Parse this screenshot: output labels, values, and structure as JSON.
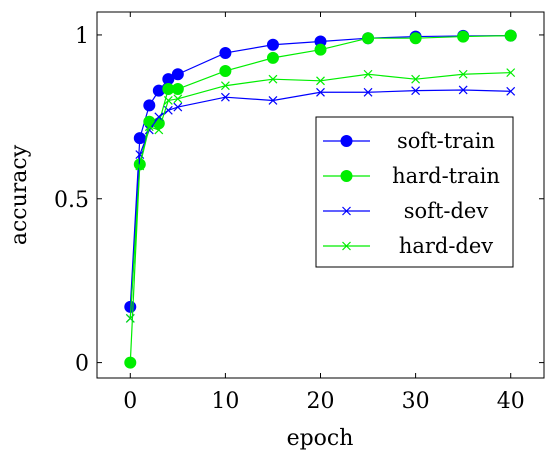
{
  "chart_data": {
    "type": "line",
    "xlabel": "epoch",
    "ylabel": "accuracy",
    "xlim": [
      -3.5,
      43.5
    ],
    "ylim": [
      -0.047,
      1.07
    ],
    "xticks": [
      0,
      10,
      20,
      30,
      40
    ],
    "yticks": [
      0,
      0.5,
      1
    ],
    "xtick_labels": [
      "0",
      "10",
      "20",
      "30",
      "40"
    ],
    "ytick_labels": [
      "0",
      "0.5",
      "1"
    ],
    "grid": false,
    "legend_position": "right",
    "series": [
      {
        "name": "soft-train",
        "color": "#0000ff",
        "marker": "circle",
        "x": [
          0,
          1,
          2,
          3,
          4,
          5,
          10,
          15,
          20,
          25,
          30,
          35,
          40
        ],
        "y": [
          0.17,
          0.685,
          0.785,
          0.83,
          0.865,
          0.88,
          0.945,
          0.97,
          0.98,
          0.99,
          0.995,
          0.997,
          0.998
        ]
      },
      {
        "name": "hard-train",
        "color": "#00ee00",
        "marker": "circle",
        "x": [
          0,
          1,
          2,
          3,
          4,
          5,
          10,
          15,
          20,
          25,
          30,
          35,
          40
        ],
        "y": [
          0.0,
          0.605,
          0.735,
          0.73,
          0.835,
          0.835,
          0.89,
          0.93,
          0.955,
          0.99,
          0.99,
          0.995,
          0.998
        ]
      },
      {
        "name": "soft-dev",
        "color": "#0000ff",
        "marker": "x",
        "x": [
          0,
          1,
          2,
          3,
          4,
          5,
          10,
          15,
          20,
          25,
          30,
          35,
          40
        ],
        "y": [
          0.135,
          0.635,
          0.71,
          0.75,
          0.77,
          0.78,
          0.81,
          0.8,
          0.825,
          0.825,
          0.83,
          0.832,
          0.828
        ]
      },
      {
        "name": "hard-dev",
        "color": "#00ee00",
        "marker": "x",
        "x": [
          0,
          1,
          2,
          3,
          4,
          5,
          10,
          15,
          20,
          25,
          30,
          35,
          40
        ],
        "y": [
          0.135,
          0.6,
          0.72,
          0.71,
          0.8,
          0.805,
          0.845,
          0.865,
          0.86,
          0.88,
          0.865,
          0.88,
          0.885
        ]
      }
    ]
  }
}
